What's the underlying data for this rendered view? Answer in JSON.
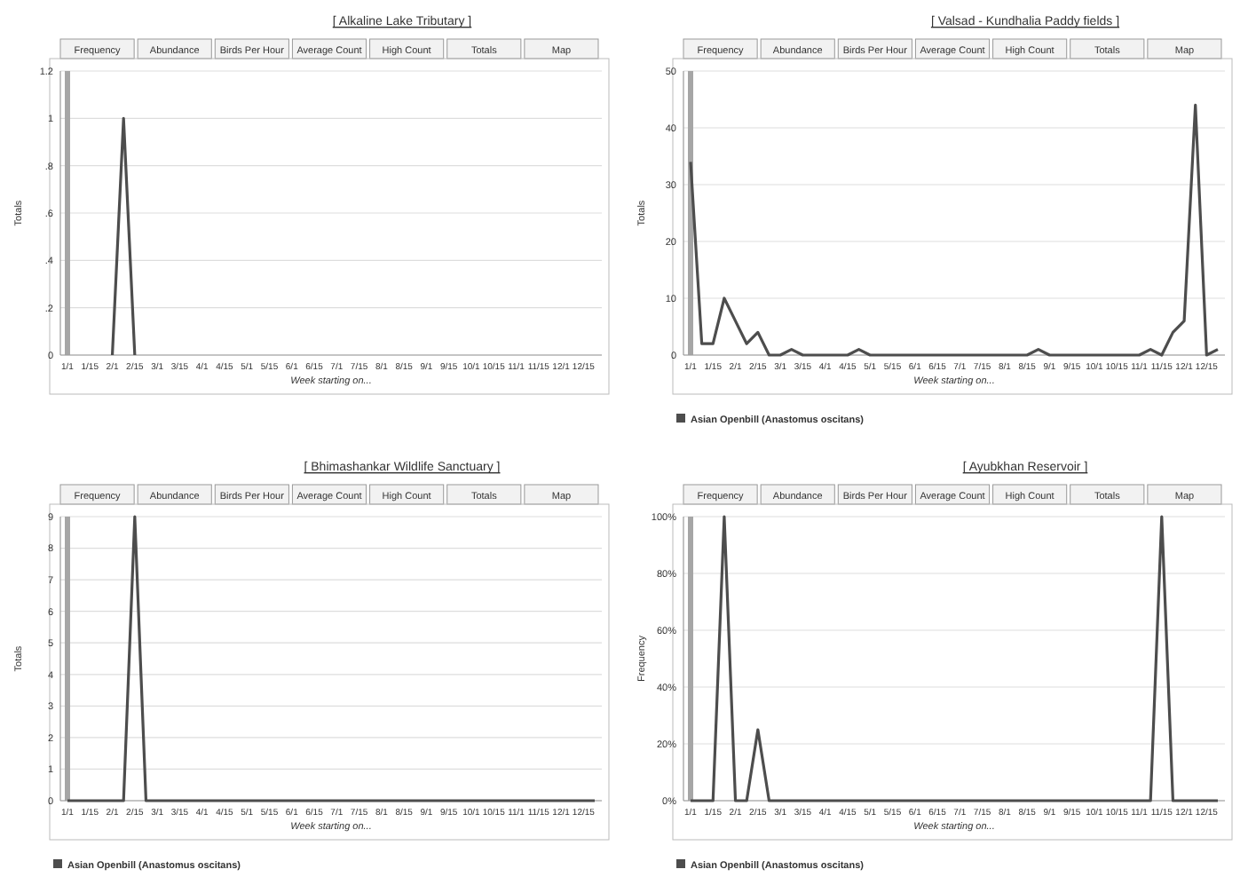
{
  "chart_data": [
    {
      "type": "line",
      "title": "[ Alkaline Lake Tributary ]",
      "annotations": [
        "Frequency",
        "Abundance",
        "Birds Per Hour",
        "Average Count",
        "High Count",
        "Totals",
        "Map"
      ],
      "xlabel": "Week starting on...",
      "ylabel": "Totals",
      "categories": [
        "1/1",
        null,
        "1/15",
        null,
        "2/1",
        null,
        "2/15",
        null,
        "3/1",
        null,
        "3/15",
        null,
        "4/1",
        null,
        "4/15",
        null,
        "5/1",
        null,
        "5/15",
        null,
        "6/1",
        null,
        "6/15",
        null,
        "7/1",
        null,
        "7/15",
        null,
        "8/1",
        null,
        "8/15",
        null,
        "9/1",
        null,
        "9/15",
        null,
        "10/1",
        null,
        "10/15",
        null,
        "11/1",
        null,
        "11/15",
        null,
        "12/1",
        null,
        "12/15",
        null
      ],
      "series": [
        {
          "color": "#4d4d4d",
          "values": [
            null,
            null,
            null,
            null,
            0,
            1,
            0,
            null,
            null,
            null,
            null,
            null,
            null,
            null,
            null,
            null,
            null,
            null,
            null,
            null,
            null,
            null,
            null,
            null,
            null,
            null,
            null,
            null,
            null,
            null,
            null,
            null,
            null,
            null,
            null,
            null,
            null,
            null,
            null,
            null,
            null,
            null,
            null,
            null,
            null,
            null,
            null,
            null
          ]
        }
      ],
      "ylim": [
        0,
        1.2
      ],
      "yticks": [
        0,
        {
          "value": 0.2,
          "label": ".2"
        },
        {
          "value": 0.4,
          "label": ".4"
        },
        {
          "value": 0.6,
          "label": ".6"
        },
        {
          "value": 0.8,
          "label": ".8"
        },
        1,
        1.2
      ],
      "grid": "y",
      "marker": "none",
      "line_style": "solid",
      "legend": false,
      "ref_lines": [
        {
          "axis": "x",
          "value": "1/1",
          "color": "#a6a6a6"
        }
      ]
    },
    {
      "type": "line",
      "title": "[ Valsad - Kundhalia Paddy fields ]",
      "annotations": [
        "Frequency",
        "Abundance",
        "Birds Per Hour",
        "Average Count",
        "High Count",
        "Totals",
        "Map"
      ],
      "xlabel": "Week starting on...",
      "ylabel": "Totals",
      "categories": [
        "1/1",
        null,
        "1/15",
        null,
        "2/1",
        null,
        "2/15",
        null,
        "3/1",
        null,
        "3/15",
        null,
        "4/1",
        null,
        "4/15",
        null,
        "5/1",
        null,
        "5/15",
        null,
        "6/1",
        null,
        "6/15",
        null,
        "7/1",
        null,
        "7/15",
        null,
        "8/1",
        null,
        "8/15",
        null,
        "9/1",
        null,
        "9/15",
        null,
        "10/1",
        null,
        "10/15",
        null,
        "11/1",
        null,
        "11/15",
        null,
        "12/1",
        null,
        "12/15",
        null
      ],
      "series": [
        {
          "name": "Asian Openbill (Anastomus oscitans)",
          "color": "#4d4d4d",
          "values": [
            34,
            2,
            2,
            10,
            6,
            2,
            4,
            0,
            0,
            1,
            0,
            0,
            0,
            0,
            0,
            1,
            0,
            0,
            0,
            0,
            0,
            0,
            0,
            0,
            0,
            0,
            0,
            0,
            0,
            0,
            0,
            1,
            0,
            0,
            0,
            0,
            0,
            0,
            0,
            0,
            0,
            1,
            0,
            4,
            6,
            44,
            0,
            1
          ]
        }
      ],
      "ylim": [
        0,
        50
      ],
      "yticks": [
        0,
        10,
        20,
        30,
        40,
        50
      ],
      "grid": "y",
      "marker": "none",
      "line_style": "solid",
      "legend": "bottom",
      "ref_lines": [
        {
          "axis": "x",
          "value": "1/1",
          "color": "#a6a6a6"
        }
      ]
    },
    {
      "type": "line",
      "title": "[ Bhimashankar Wildlife Sanctuary ]",
      "annotations": [
        "Frequency",
        "Abundance",
        "Birds Per Hour",
        "Average Count",
        "High Count",
        "Totals",
        "Map"
      ],
      "xlabel": "Week starting on...",
      "ylabel": "Totals",
      "categories": [
        "1/1",
        null,
        "1/15",
        null,
        "2/1",
        null,
        "2/15",
        null,
        "3/1",
        null,
        "3/15",
        null,
        "4/1",
        null,
        "4/15",
        null,
        "5/1",
        null,
        "5/15",
        null,
        "6/1",
        null,
        "6/15",
        null,
        "7/1",
        null,
        "7/15",
        null,
        "8/1",
        null,
        "8/15",
        null,
        "9/1",
        null,
        "9/15",
        null,
        "10/1",
        null,
        "10/15",
        null,
        "11/1",
        null,
        "11/15",
        null,
        "12/1",
        null,
        "12/15",
        null
      ],
      "series": [
        {
          "name": "Asian Openbill (Anastomus oscitans)",
          "color": "#4d4d4d",
          "values": [
            0,
            0,
            0,
            0,
            0,
            0,
            9,
            0,
            0,
            0,
            0,
            0,
            0,
            0,
            0,
            0,
            0,
            0,
            0,
            0,
            0,
            0,
            0,
            0,
            0,
            0,
            0,
            0,
            0,
            0,
            0,
            0,
            0,
            0,
            0,
            0,
            0,
            0,
            0,
            0,
            0,
            0,
            0,
            0,
            0,
            0,
            0,
            0
          ]
        }
      ],
      "ylim": [
        0,
        9
      ],
      "yticks": [
        0,
        1,
        2,
        3,
        4,
        5,
        6,
        7,
        8,
        9
      ],
      "grid": "y",
      "marker": "none",
      "line_style": "solid",
      "legend": "bottom",
      "ref_lines": [
        {
          "axis": "x",
          "value": "1/1",
          "color": "#a6a6a6"
        }
      ]
    },
    {
      "type": "line",
      "title": "[ Ayubkhan Reservoir ]",
      "annotations": [
        "Frequency",
        "Abundance",
        "Birds Per Hour",
        "Average Count",
        "High Count",
        "Totals",
        "Map"
      ],
      "xlabel": "Week starting on...",
      "ylabel": "Frequency",
      "categories": [
        "1/1",
        null,
        "1/15",
        null,
        "2/1",
        null,
        "2/15",
        null,
        "3/1",
        null,
        "3/15",
        null,
        "4/1",
        null,
        "4/15",
        null,
        "5/1",
        null,
        "5/15",
        null,
        "6/1",
        null,
        "6/15",
        null,
        "7/1",
        null,
        "7/15",
        null,
        "8/1",
        null,
        "8/15",
        null,
        "9/1",
        null,
        "9/15",
        null,
        "10/1",
        null,
        "10/15",
        null,
        "11/1",
        null,
        "11/15",
        null,
        "12/1",
        null,
        "12/15",
        null
      ],
      "series": [
        {
          "name": "Asian Openbill (Anastomus oscitans)",
          "color": "#4d4d4d",
          "values": [
            0,
            0,
            0,
            100,
            0,
            0,
            25,
            0,
            0,
            0,
            0,
            0,
            0,
            0,
            0,
            0,
            0,
            0,
            0,
            0,
            0,
            0,
            0,
            0,
            0,
            0,
            0,
            0,
            0,
            0,
            0,
            0,
            0,
            0,
            0,
            0,
            0,
            0,
            0,
            0,
            0,
            0,
            100,
            0,
            0,
            0,
            0,
            0
          ]
        }
      ],
      "ylim": [
        0,
        100
      ],
      "yticks": [
        {
          "value": 0,
          "label": "0%"
        },
        {
          "value": 20,
          "label": "20%"
        },
        {
          "value": 40,
          "label": "40%"
        },
        {
          "value": 60,
          "label": "60%"
        },
        {
          "value": 80,
          "label": "80%"
        },
        {
          "value": 100,
          "label": "100%"
        }
      ],
      "grid": "y",
      "marker": "none",
      "line_style": "solid",
      "legend": "bottom",
      "ref_lines": [
        {
          "axis": "x",
          "value": "1/1",
          "color": "#a6a6a6"
        }
      ]
    }
  ]
}
